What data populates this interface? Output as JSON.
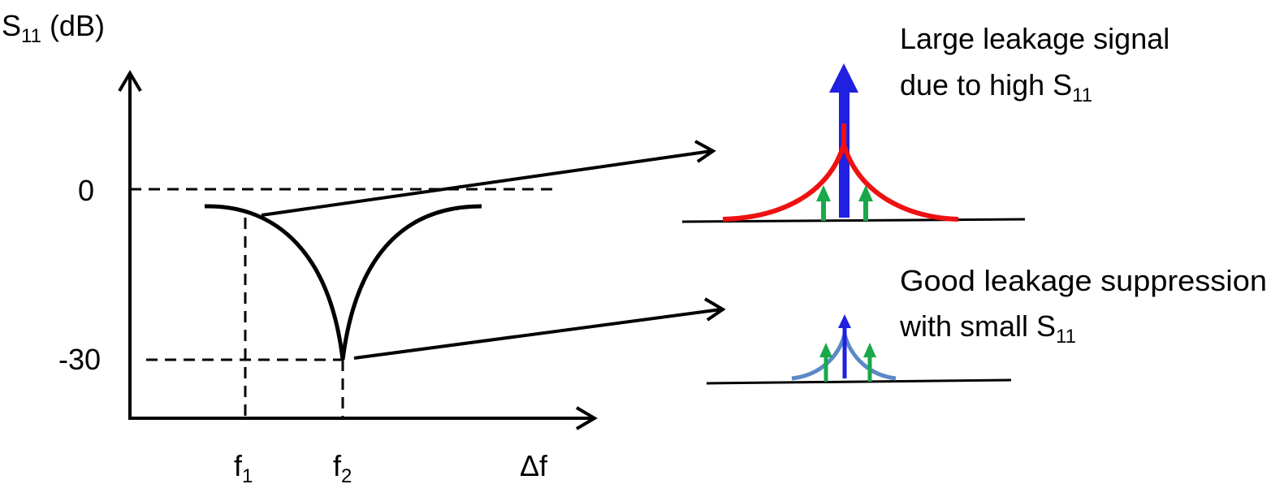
{
  "plot": {
    "y_axis_label": "S",
    "y_axis_label_sub": "11",
    "y_axis_label_unit": " (dB)",
    "y_tick_top": "0",
    "y_tick_bottom": "-30",
    "x_tick_1": "f",
    "x_tick_1_sub": "1",
    "x_tick_2": "f",
    "x_tick_2_sub": "2",
    "x_axis_label": "Δf"
  },
  "annotations": {
    "upper_line1": "Large leakage signal",
    "upper_line2": "due to high S",
    "upper_line2_sub": "11",
    "lower_line1": "Good leakage suppression",
    "lower_line2": "with small S",
    "lower_line2_sub": "11"
  },
  "colors": {
    "axis": "#000000",
    "leakage_arrow": "#2020e0",
    "sideband_arrow": "#1aa84a",
    "high_s11_curve": "#ee1111",
    "low_s11_curve": "#5a8ac6"
  }
}
